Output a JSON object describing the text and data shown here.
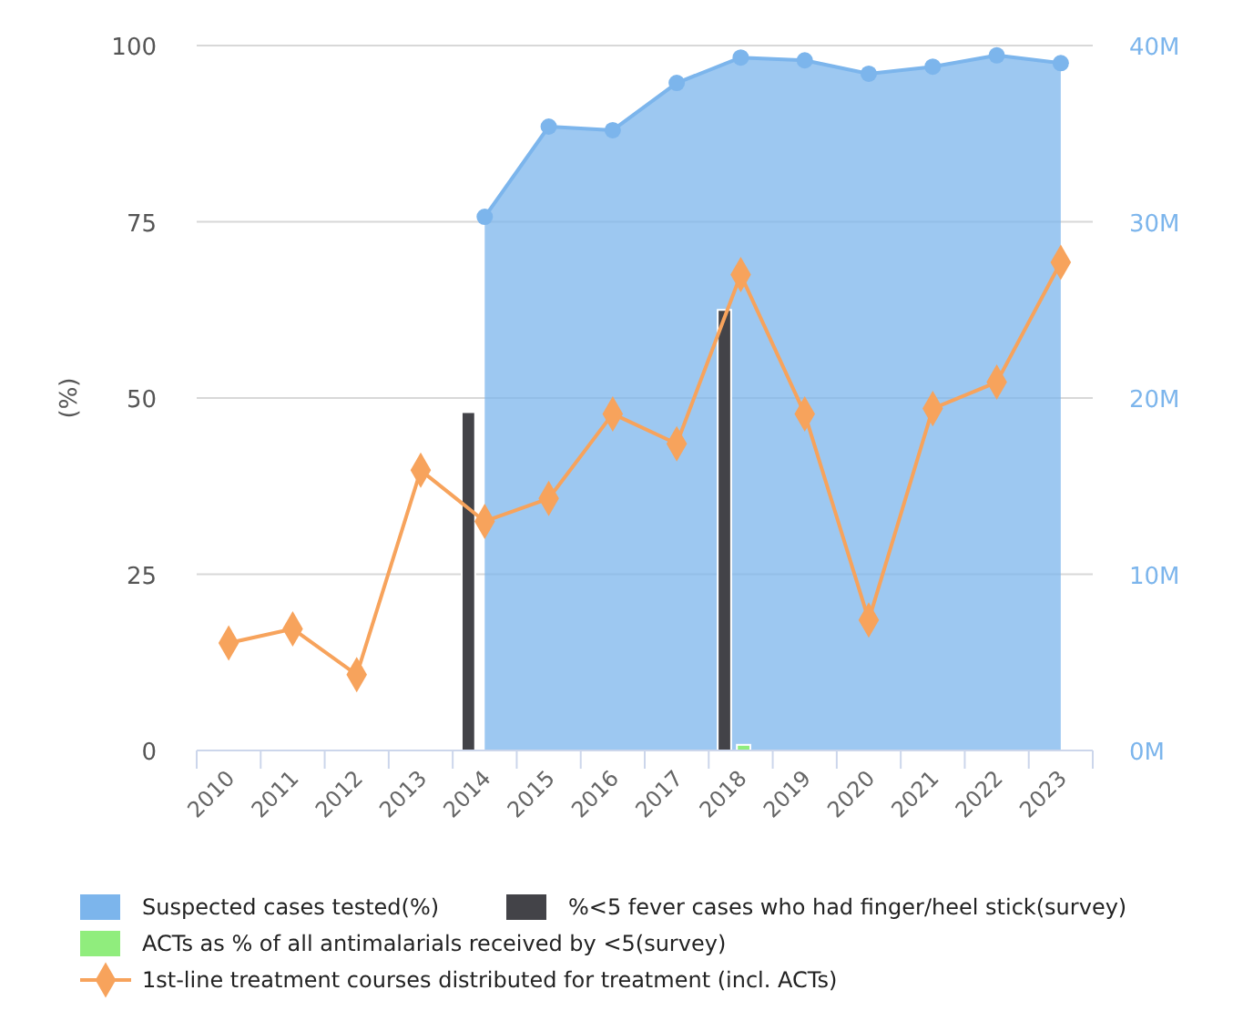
{
  "chart_data": {
    "type": "bar",
    "ylabel": "(%)",
    "categories": [
      "2010",
      "2011",
      "2012",
      "2013",
      "2014",
      "2015",
      "2016",
      "2017",
      "2018",
      "2019",
      "2020",
      "2021",
      "2022",
      "2023"
    ],
    "series": [
      {
        "name": "Suspected cases tested(%)",
        "type": "area",
        "color": "#7cb5ec",
        "marker": "circle",
        "values": [
          null,
          null,
          null,
          null,
          75.7,
          88.5,
          88.0,
          94.7,
          98.3,
          97.9,
          96.0,
          97.0,
          98.6,
          97.5
        ]
      },
      {
        "name": "%<5 fever cases who had finger/heel stick(survey)",
        "color": "#434348",
        "values": [
          null,
          null,
          null,
          null,
          48.0,
          null,
          null,
          null,
          62.5,
          null,
          null,
          null,
          null,
          null
        ]
      },
      {
        "name": "ACTs as % of all antimalarials received by <5(survey)",
        "color": "#90ed7d",
        "values": [
          null,
          null,
          null,
          null,
          null,
          null,
          null,
          null,
          0.8,
          null,
          null,
          null,
          null,
          null
        ]
      },
      {
        "name": "1st-line treatment courses distributed for treatment (incl. ACTs)",
        "type": "line",
        "axis": "y2",
        "color": "#f7a35c",
        "marker": "diamond",
        "values": [
          6.1,
          6.9,
          4.3,
          15.9,
          13.0,
          14.3,
          19.1,
          17.4,
          27.0,
          19.1,
          7.4,
          19.4,
          20.9,
          27.7
        ]
      }
    ],
    "ylim": [
      0,
      100
    ],
    "yticks": [
      0,
      25,
      50,
      75,
      100
    ],
    "y2lim": [
      0,
      40
    ],
    "y2ticks": [
      {
        "value": 0,
        "label": "0M"
      },
      {
        "value": 10,
        "label": "10M"
      },
      {
        "value": 20,
        "label": "20M"
      },
      {
        "value": 30,
        "label": "30M"
      },
      {
        "value": 40,
        "label": "40M"
      }
    ],
    "grid": "y",
    "legend": "bottom"
  }
}
